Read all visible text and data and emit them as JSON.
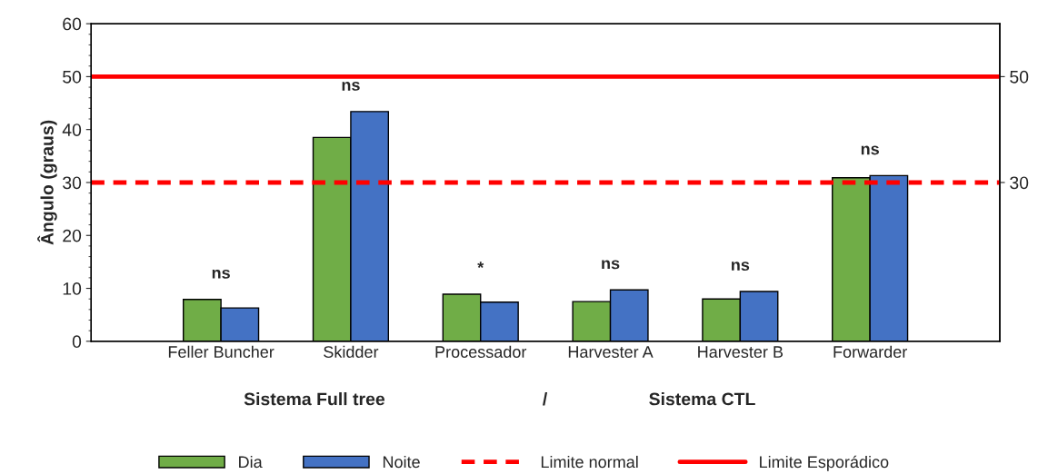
{
  "chart_data": {
    "type": "bar",
    "ylabel": "Ângulo (graus)",
    "categories": [
      "Feller Buncher",
      "Skidder",
      "Processador",
      "Harvester A",
      "Harvester B",
      "Forwarder"
    ],
    "series": [
      {
        "name": "Dia",
        "color": "#70ad47",
        "values": [
          7.9,
          38.5,
          8.9,
          7.5,
          8.0,
          30.9
        ]
      },
      {
        "name": "Noite",
        "color": "#4472c4",
        "values": [
          6.3,
          43.4,
          7.4,
          9.7,
          9.4,
          31.3
        ]
      }
    ],
    "ylim": [
      0,
      60
    ],
    "yticks": [
      0,
      10,
      20,
      30,
      40,
      50,
      60
    ],
    "y2lim": [
      0,
      60
    ],
    "y2ticks": [
      30,
      50
    ],
    "ref_lines": [
      {
        "axis": "y",
        "value": 30,
        "label": "Limite normal",
        "color": "#ff0000",
        "line_style": "dashed"
      },
      {
        "axis": "y",
        "value": 50,
        "label": "Limite Esporádico",
        "color": "#ff0000",
        "line_style": "solid"
      }
    ],
    "annotations": [
      "ns",
      "ns",
      "*",
      "ns",
      "ns",
      "ns",
      "Sistema Full tree",
      "/",
      "Sistema CTL"
    ],
    "grid": false,
    "legend": "bottom"
  }
}
